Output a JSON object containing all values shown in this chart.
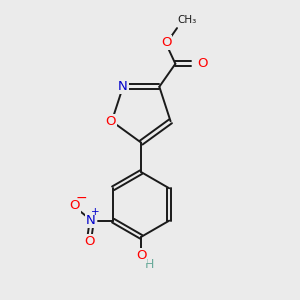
{
  "background_color": "#ebebeb",
  "bond_color": "#1a1a1a",
  "atom_colors": {
    "O": "#ff0000",
    "N": "#0000cc",
    "H": "#6aaa9a",
    "C": "#1a1a1a"
  },
  "figsize": [
    3.0,
    3.0
  ],
  "dpi": 100,
  "lw": 1.4,
  "fontsize": 9.5
}
